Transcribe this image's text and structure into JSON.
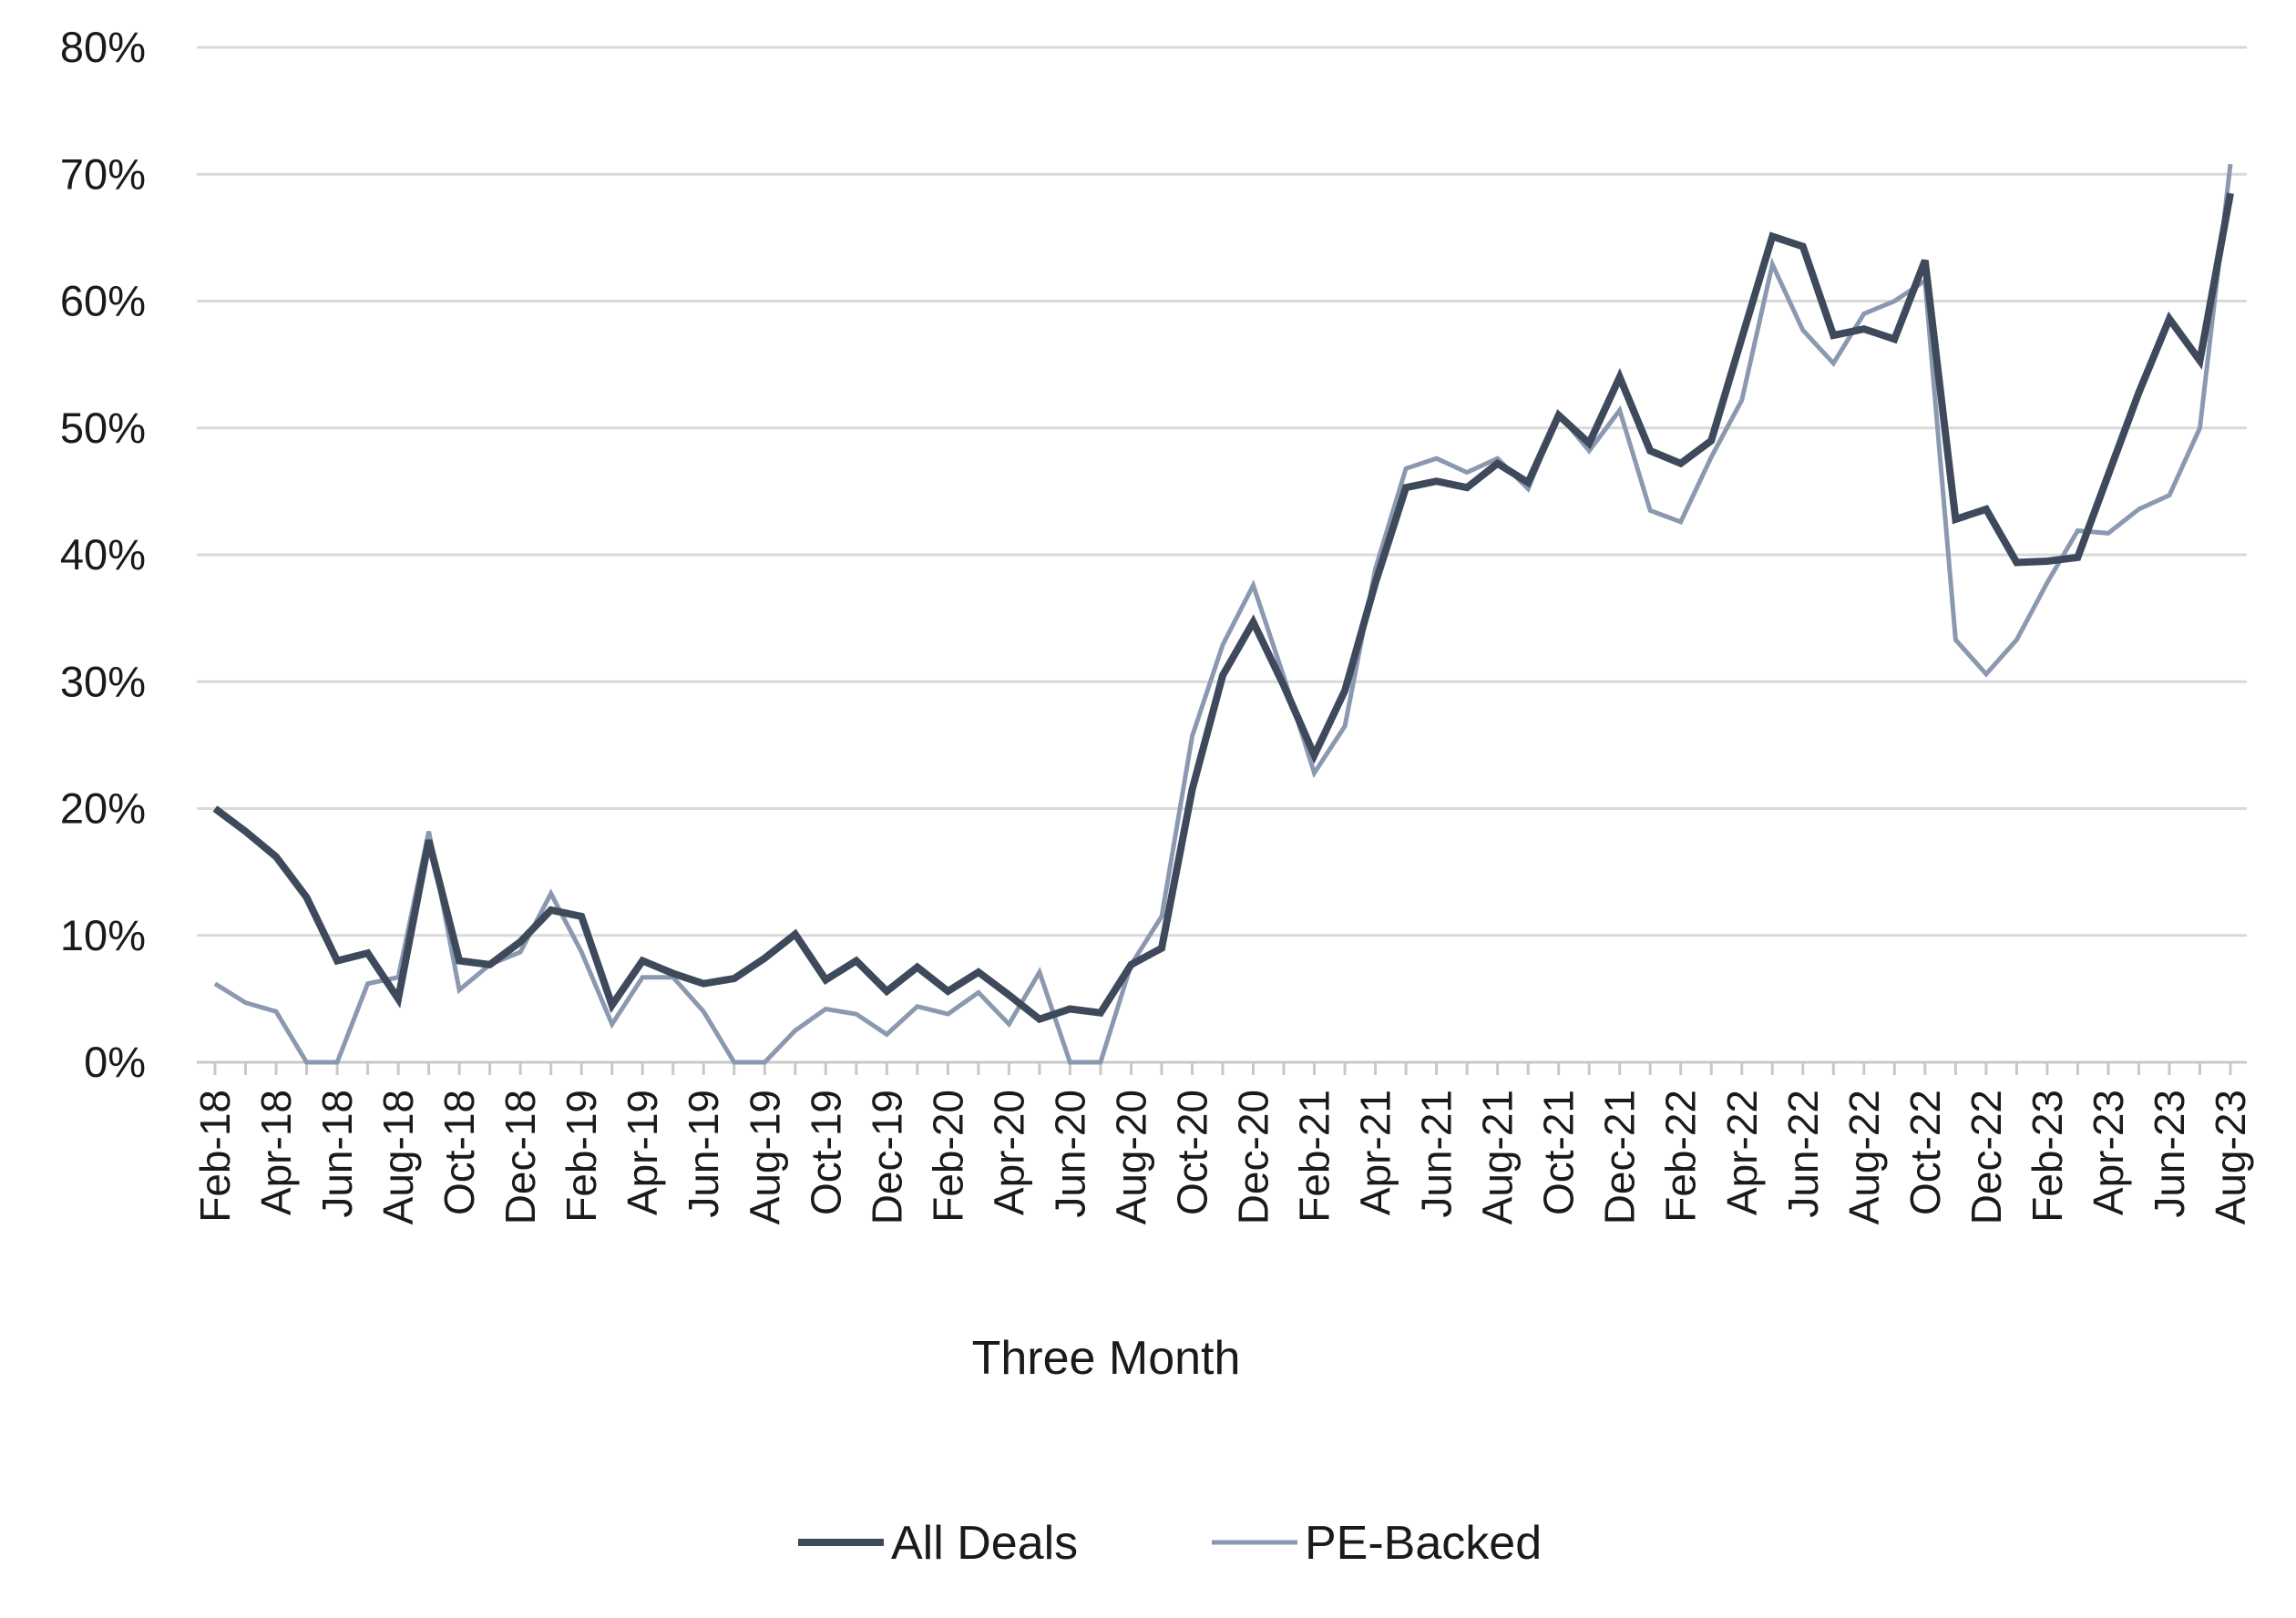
{
  "chart_data": {
    "type": "line",
    "title": "",
    "xlabel": "Three Month",
    "ylabel": "",
    "ylim": [
      0,
      80
    ],
    "y_ticks": [
      0,
      10,
      20,
      30,
      40,
      50,
      60,
      70,
      80
    ],
    "y_tick_format": "{v}%",
    "grid": "horizontal",
    "legend_position": "bottom",
    "x_tick_labels": [
      "Feb-18",
      "Apr-18",
      "Jun-18",
      "Aug-18",
      "Oct-18",
      "Dec-18",
      "Feb-19",
      "Apr-19",
      "Jun-19",
      "Aug-19",
      "Oct-19",
      "Dec-19",
      "Feb-20",
      "Apr-20",
      "Jun-20",
      "Aug-20",
      "Oct-20",
      "Dec-20",
      "Feb-21",
      "Apr-21",
      "Jun-21",
      "Aug-21",
      "Oct-21",
      "Dec-21",
      "Feb-22",
      "Apr-22",
      "Jun-22",
      "Aug-22",
      "Oct-22",
      "Dec-22",
      "Feb-23",
      "Apr-23",
      "Jun-23",
      "Aug-23"
    ],
    "x": [
      "Feb-18",
      "Mar-18",
      "Apr-18",
      "May-18",
      "Jun-18",
      "Jul-18",
      "Aug-18",
      "Sep-18",
      "Oct-18",
      "Nov-18",
      "Dec-18",
      "Jan-19",
      "Feb-19",
      "Mar-19",
      "Apr-19",
      "May-19",
      "Jun-19",
      "Jul-19",
      "Aug-19",
      "Sep-19",
      "Oct-19",
      "Nov-19",
      "Dec-19",
      "Jan-20",
      "Feb-20",
      "Mar-20",
      "Apr-20",
      "May-20",
      "Jun-20",
      "Jul-20",
      "Aug-20",
      "Sep-20",
      "Oct-20",
      "Nov-20",
      "Dec-20",
      "Jan-21",
      "Feb-21",
      "Mar-21",
      "Apr-21",
      "May-21",
      "Jun-21",
      "Jul-21",
      "Aug-21",
      "Sep-21",
      "Oct-21",
      "Nov-21",
      "Dec-21",
      "Jan-22",
      "Feb-22",
      "Mar-22",
      "Apr-22",
      "May-22",
      "Jun-22",
      "Jul-22",
      "Aug-22",
      "Sep-22",
      "Oct-22",
      "Nov-22",
      "Dec-22",
      "Jan-23",
      "Feb-23",
      "Mar-23",
      "Apr-23",
      "May-23",
      "Jun-23",
      "Jul-23",
      "Aug-23"
    ],
    "series": [
      {
        "name": "All Deals",
        "color": "#3e4a5c",
        "line_weight": "thick",
        "values": [
          20,
          18.2,
          16.2,
          13,
          8,
          8.6,
          5,
          17.5,
          8,
          7.7,
          9.5,
          12,
          11.5,
          4.5,
          8,
          7,
          6.2,
          6.6,
          8.2,
          10.1,
          6.5,
          8,
          5.6,
          7.5,
          5.6,
          7.1,
          5.3,
          3.4,
          4.2,
          3.9,
          7.7,
          9,
          21.5,
          30.5,
          34.7,
          29.7,
          24.2,
          29.3,
          37.8,
          45.3,
          45.8,
          45.3,
          47.2,
          45.7,
          51,
          48.8,
          54,
          48.2,
          47.2,
          49,
          57.1,
          65.1,
          64.3,
          57.3,
          57.8,
          57,
          63.2,
          42.8,
          43.6,
          39.4,
          39.5,
          39.8,
          46.3,
          52.8,
          58.6,
          55.3,
          68.5
        ]
      },
      {
        "name": "PE-Backed",
        "color": "#8a99b0",
        "line_weight": "thin",
        "values": [
          6.2,
          4.7,
          4,
          0,
          0,
          6.2,
          6.7,
          18.2,
          5.7,
          7.7,
          8.7,
          13.3,
          8.7,
          3,
          6.7,
          6.7,
          4,
          0,
          0,
          2.5,
          4.2,
          3.8,
          2.2,
          4.4,
          3.8,
          5.5,
          3,
          7.1,
          0,
          0,
          7.7,
          11.5,
          25.7,
          32.9,
          37.6,
          30.4,
          22.8,
          26.5,
          38.9,
          46.8,
          47.6,
          46.5,
          47.6,
          45.2,
          51.1,
          48.2,
          51.4,
          43.5,
          42.6,
          47.7,
          52.2,
          62.9,
          57.7,
          55.1,
          59,
          60,
          61.6,
          33.3,
          30.6,
          33.3,
          37.8,
          41.9,
          41.7,
          43.6,
          44.7,
          50,
          70.8
        ]
      }
    ]
  }
}
